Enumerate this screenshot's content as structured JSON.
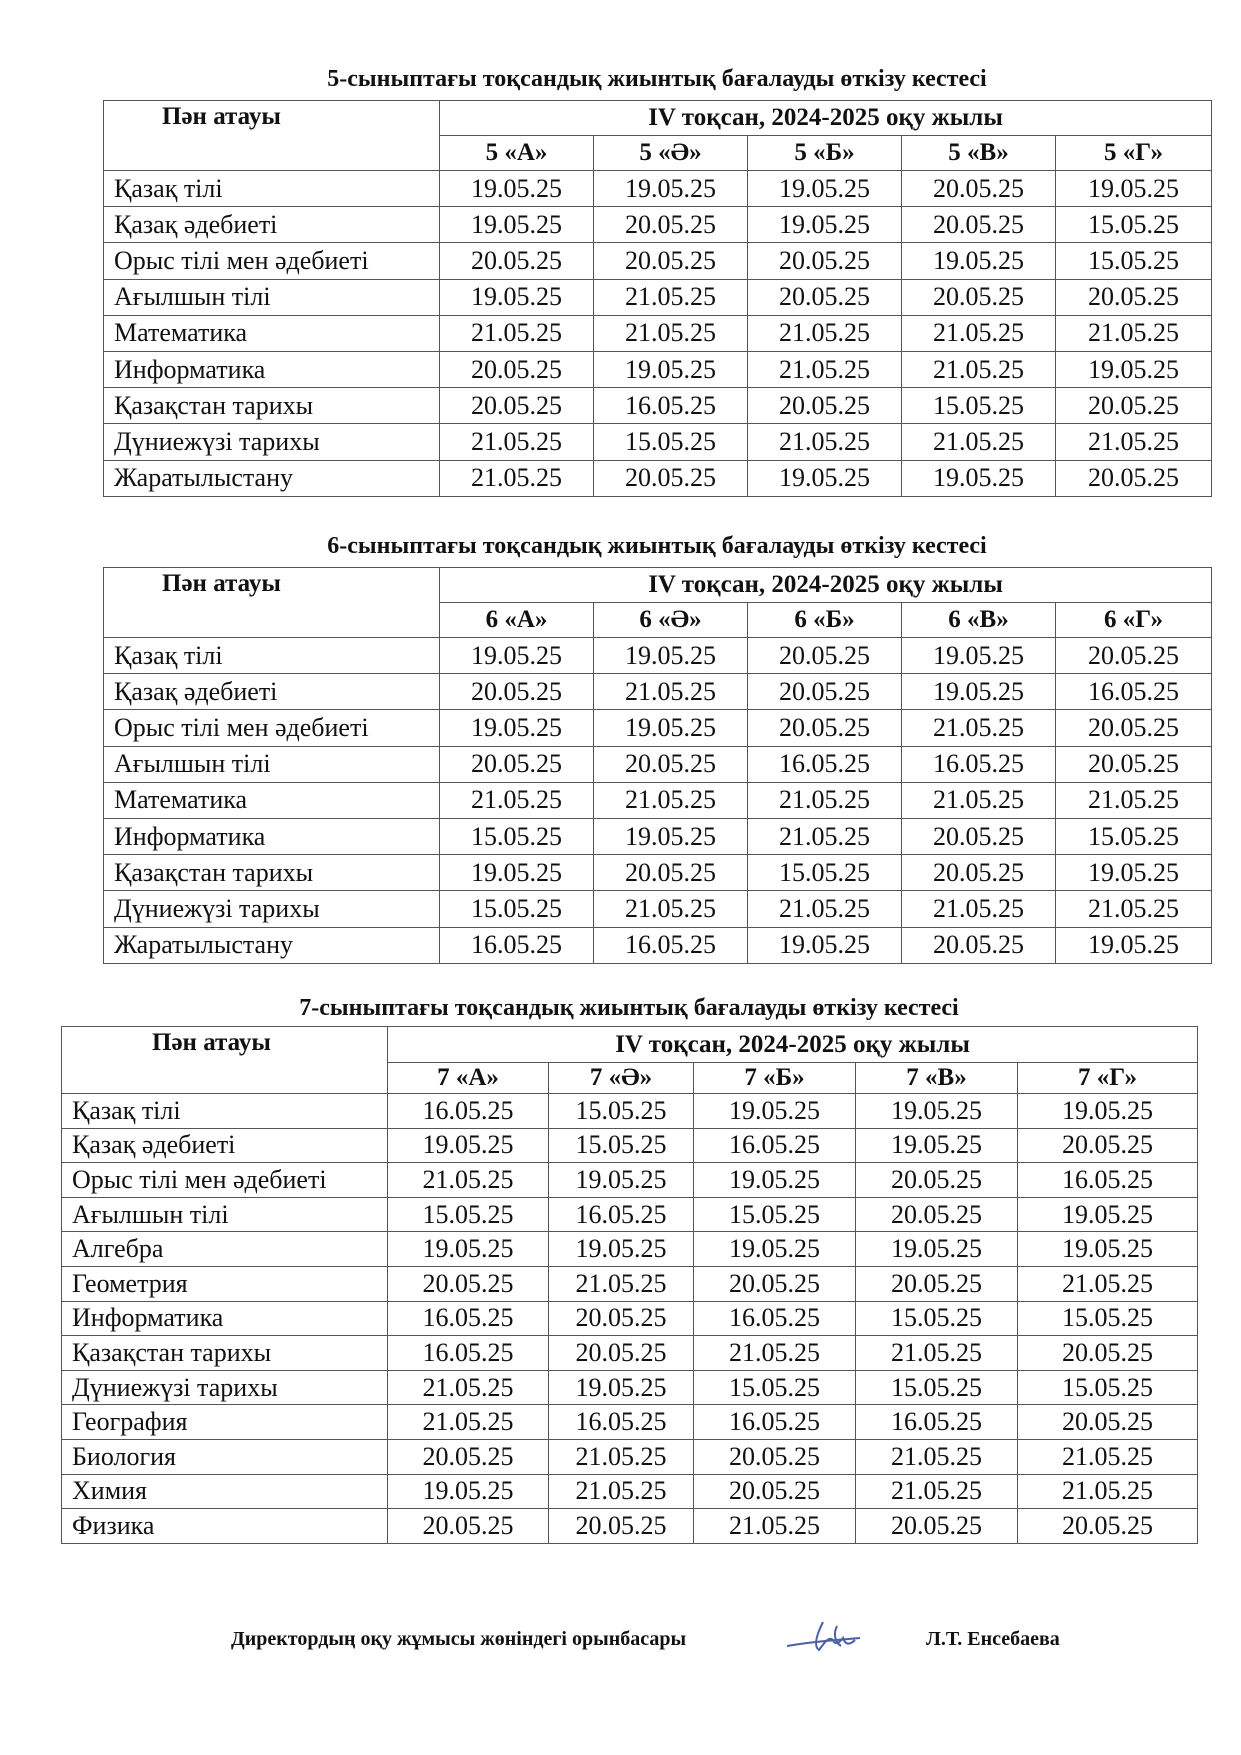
{
  "tables": [
    {
      "title": "5-сыныптағы тоқсандық жиынтық бағалауды өткізу кестесі",
      "subject_header": "Пән атауы",
      "period_header": "IV тоқсан, 2024-2025 оқу жылы",
      "classes": [
        "5 «А»",
        "5 «Ә»",
        "5 «Б»",
        "5 «В»",
        "5 «Г»"
      ],
      "rows": [
        {
          "subject": "Қазақ тілі",
          "dates": [
            "19.05.25",
            "19.05.25",
            "19.05.25",
            "20.05.25",
            "19.05.25"
          ]
        },
        {
          "subject": "Қазақ әдебиеті",
          "dates": [
            "19.05.25",
            "20.05.25",
            "19.05.25",
            "20.05.25",
            "15.05.25"
          ]
        },
        {
          "subject": "Орыс тілі мен әдебиеті",
          "dates": [
            "20.05.25",
            "20.05.25",
            "20.05.25",
            "19.05.25",
            "15.05.25"
          ]
        },
        {
          "subject": "Ағылшын тілі",
          "dates": [
            "19.05.25",
            "21.05.25",
            "20.05.25",
            "20.05.25",
            "20.05.25"
          ]
        },
        {
          "subject": "Математика",
          "dates": [
            "21.05.25",
            "21.05.25",
            "21.05.25",
            "21.05.25",
            "21.05.25"
          ]
        },
        {
          "subject": "Информатика",
          "dates": [
            "20.05.25",
            "19.05.25",
            "21.05.25",
            "21.05.25",
            "19.05.25"
          ]
        },
        {
          "subject": "Қазақстан тарихы",
          "dates": [
            "20.05.25",
            "16.05.25",
            "20.05.25",
            "15.05.25",
            "20.05.25"
          ]
        },
        {
          "subject": "Дүниежүзі тарихы",
          "dates": [
            "21.05.25",
            "15.05.25",
            "21.05.25",
            "21.05.25",
            "21.05.25"
          ]
        },
        {
          "subject": "Жаратылыстану",
          "dates": [
            "21.05.25",
            "20.05.25",
            "19.05.25",
            "19.05.25",
            "20.05.25"
          ]
        }
      ]
    },
    {
      "title": "6-сыныптағы тоқсандық жиынтық бағалауды өткізу кестесі",
      "subject_header": "Пән атауы",
      "period_header": "IV тоқсан, 2024-2025 оқу жылы",
      "classes": [
        "6 «А»",
        "6 «Ә»",
        "6 «Б»",
        "6 «В»",
        "6 «Г»"
      ],
      "rows": [
        {
          "subject": "Қазақ тілі",
          "dates": [
            "19.05.25",
            "19.05.25",
            "20.05.25",
            "19.05.25",
            "20.05.25"
          ]
        },
        {
          "subject": "Қазақ әдебиеті",
          "dates": [
            "20.05.25",
            "21.05.25",
            "20.05.25",
            "19.05.25",
            "16.05.25"
          ]
        },
        {
          "subject": "Орыс тілі мен әдебиеті",
          "dates": [
            "19.05.25",
            "19.05.25",
            "20.05.25",
            "21.05.25",
            "20.05.25"
          ]
        },
        {
          "subject": "Ағылшын тілі",
          "dates": [
            "20.05.25",
            "20.05.25",
            "16.05.25",
            "16.05.25",
            "20.05.25"
          ]
        },
        {
          "subject": "Математика",
          "dates": [
            "21.05.25",
            "21.05.25",
            "21.05.25",
            "21.05.25",
            "21.05.25"
          ]
        },
        {
          "subject": "Информатика",
          "dates": [
            "15.05.25",
            "19.05.25",
            "21.05.25",
            "20.05.25",
            "15.05.25"
          ]
        },
        {
          "subject": "Қазақстан тарихы",
          "dates": [
            "19.05.25",
            "20.05.25",
            "15.05.25",
            "20.05.25",
            "19.05.25"
          ]
        },
        {
          "subject": "Дүниежүзі тарихы",
          "dates": [
            "15.05.25",
            "21.05.25",
            "21.05.25",
            "21.05.25",
            "21.05.25"
          ]
        },
        {
          "subject": "Жаратылыстану",
          "dates": [
            "16.05.25",
            "16.05.25",
            "19.05.25",
            "20.05.25",
            "19.05.25"
          ]
        }
      ]
    },
    {
      "title": "7-сыныптағы тоқсандық жиынтық бағалауды өткізу кестесі",
      "subject_header": "Пән атауы",
      "period_header": "IV тоқсан, 2024-2025 оқу жылы",
      "classes": [
        "7 «А»",
        "7 «Ә»",
        "7 «Б»",
        "7 «В»",
        "7 «Г»"
      ],
      "rows": [
        {
          "subject": "Қазақ тілі",
          "dates": [
            "16.05.25",
            "15.05.25",
            "19.05.25",
            "19.05.25",
            "19.05.25"
          ]
        },
        {
          "subject": "Қазақ әдебиеті",
          "dates": [
            "19.05.25",
            "15.05.25",
            "16.05.25",
            "19.05.25",
            "20.05.25"
          ]
        },
        {
          "subject": "Орыс тілі мен әдебиеті",
          "dates": [
            "21.05.25",
            "19.05.25",
            "19.05.25",
            "20.05.25",
            "16.05.25"
          ]
        },
        {
          "subject": "Ағылшын тілі",
          "dates": [
            "15.05.25",
            "16.05.25",
            "15.05.25",
            "20.05.25",
            "19.05.25"
          ]
        },
        {
          "subject": "Алгебра",
          "dates": [
            "19.05.25",
            "19.05.25",
            "19.05.25",
            "19.05.25",
            "19.05.25"
          ]
        },
        {
          "subject": "Геометрия",
          "dates": [
            "20.05.25",
            "21.05.25",
            "20.05.25",
            "20.05.25",
            "21.05.25"
          ]
        },
        {
          "subject": "Информатика",
          "dates": [
            "16.05.25",
            "20.05.25",
            "16.05.25",
            "15.05.25",
            "15.05.25"
          ]
        },
        {
          "subject": "Қазақстан тарихы",
          "dates": [
            "16.05.25",
            "20.05.25",
            "21.05.25",
            "21.05.25",
            "20.05.25"
          ]
        },
        {
          "subject": "Дүниежүзі тарихы",
          "dates": [
            "21.05.25",
            "19.05.25",
            "15.05.25",
            "15.05.25",
            "15.05.25"
          ]
        },
        {
          "subject": "География",
          "dates": [
            "21.05.25",
            "16.05.25",
            "16.05.25",
            "16.05.25",
            "20.05.25"
          ]
        },
        {
          "subject": "Биология",
          "dates": [
            "20.05.25",
            "21.05.25",
            "20.05.25",
            "21.05.25",
            "21.05.25"
          ]
        },
        {
          "subject": "Химия",
          "dates": [
            "19.05.25",
            "21.05.25",
            "20.05.25",
            "21.05.25",
            "21.05.25"
          ]
        },
        {
          "subject": "Физика",
          "dates": [
            "20.05.25",
            "20.05.25",
            "21.05.25",
            "20.05.25",
            "20.05.25"
          ]
        }
      ]
    }
  ],
  "footer": {
    "position": "Директордың оқу жұмысы жөніндегі орынбасары",
    "signature_color": "#4a5fa8",
    "name": "Л.Т. Енсебаева"
  }
}
